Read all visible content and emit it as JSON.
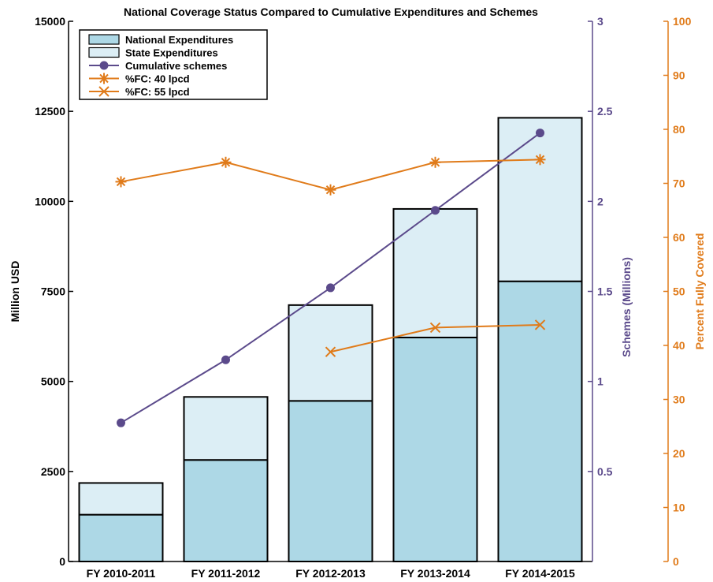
{
  "chart_data": {
    "type": "bar",
    "title": "National Coverage Status Compared to Cumulative Expenditures and Schemes",
    "categories": [
      "FY 2010-2011",
      "FY 2011-2012",
      "FY 2012-2013",
      "FY 2013-2014",
      "FY 2014-2015"
    ],
    "left_axis": {
      "label": "Million USD",
      "ylim": [
        0,
        15000
      ],
      "ticks": [
        "0",
        "2500",
        "5000",
        "7500",
        "10000",
        "12500",
        "15000"
      ],
      "tick_values": [
        0,
        2500,
        5000,
        7500,
        10000,
        12500,
        15000
      ]
    },
    "right_axis_1": {
      "label": "Schemes (Millions)",
      "ylim": [
        0,
        3
      ],
      "ticks": [
        "0.5",
        "1",
        "1.5",
        "2",
        "2.5",
        "3"
      ],
      "tick_values": [
        0.5,
        1,
        1.5,
        2,
        2.5,
        3
      ]
    },
    "right_axis_2": {
      "label": "Percent Fully Covered",
      "ylim": [
        0,
        100
      ],
      "ticks": [
        "0",
        "10",
        "20",
        "30",
        "40",
        "50",
        "60",
        "70",
        "80",
        "90",
        "100"
      ],
      "tick_values": [
        0,
        10,
        20,
        30,
        40,
        50,
        60,
        70,
        80,
        90,
        100
      ]
    },
    "stacked_bars": [
      {
        "name": "National Expenditures",
        "values": [
          1300,
          2820,
          4460,
          6220,
          7780
        ],
        "color": "#add8e6"
      },
      {
        "name": "State Expenditures",
        "values": [
          880,
          1750,
          2660,
          3570,
          4540
        ],
        "color": "#dceef5"
      }
    ],
    "lines": [
      {
        "name": "Cumulative schemes",
        "axis": "schemes",
        "values": [
          0.77,
          1.12,
          1.52,
          1.95,
          2.38
        ],
        "color": "#5b4a8b",
        "marker": "circle"
      },
      {
        "name": "%FC: 40 lpcd",
        "axis": "percent",
        "values": [
          70.3,
          73.9,
          68.8,
          73.9,
          74.4
        ],
        "color": "#e07b1a",
        "marker": "asterisk"
      },
      {
        "name": "%FC: 55 lpcd",
        "axis": "percent",
        "values": [
          null,
          null,
          38.8,
          43.3,
          43.8
        ],
        "color": "#e07b1a",
        "marker": "x"
      }
    ],
    "legend": {
      "placement": "top-left",
      "items": [
        "National Expenditures",
        "State Expenditures",
        "Cumulative schemes",
        "%FC: 40 lpcd",
        "%FC: 55 lpcd"
      ]
    },
    "colors": {
      "schemes_axis": "#5b4a8b",
      "percent_axis": "#e07b1a",
      "left_axis": "#000000"
    }
  }
}
